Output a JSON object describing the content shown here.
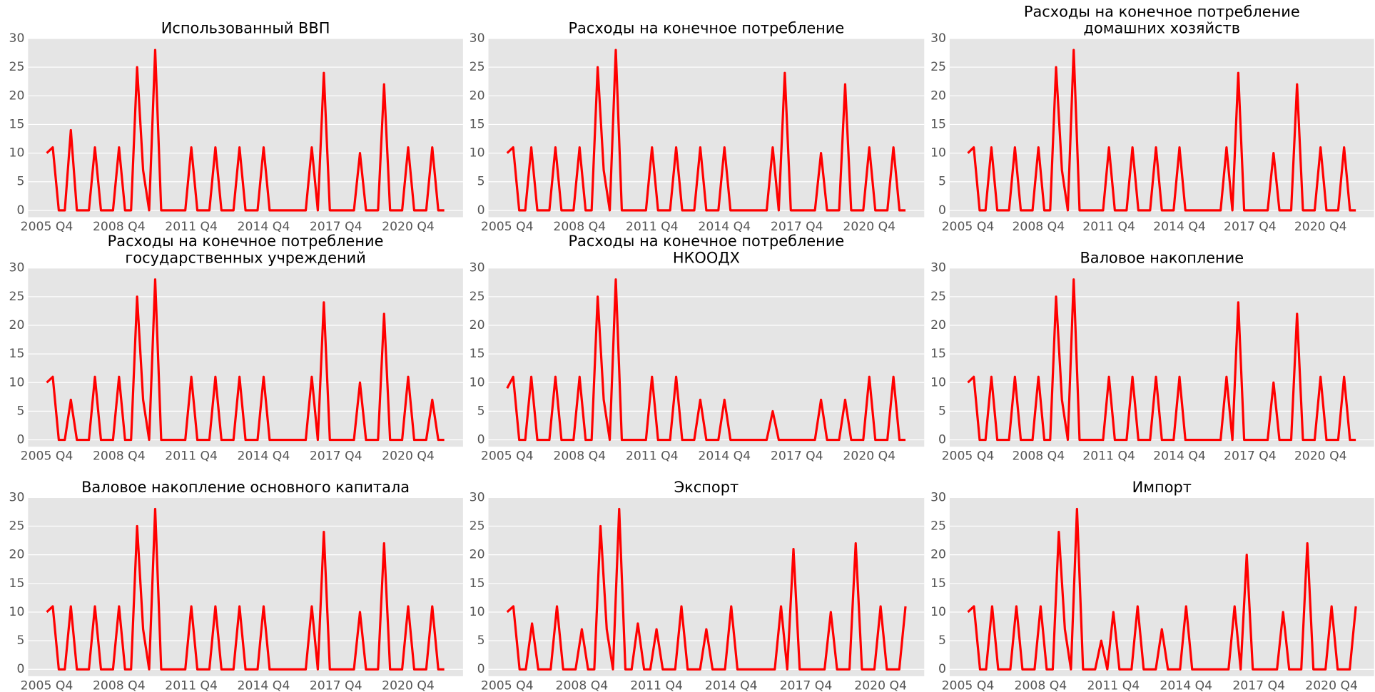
{
  "chart_data": [
    {
      "type": "line",
      "title": "Использованный ВВП",
      "color": "#ff0000",
      "ylim": [
        -1.2,
        30
      ],
      "yticks": [
        0,
        5,
        10,
        15,
        20,
        25,
        30
      ],
      "grid": true,
      "categories": [
        "2005 Q4",
        null,
        null,
        null,
        null,
        null,
        null,
        null,
        null,
        null,
        null,
        null,
        "2008 Q4",
        null,
        null,
        null,
        null,
        null,
        null,
        null,
        null,
        null,
        null,
        null,
        "2011 Q4",
        null,
        null,
        null,
        null,
        null,
        null,
        null,
        null,
        null,
        null,
        null,
        "2014 Q4",
        null,
        null,
        null,
        null,
        null,
        null,
        null,
        null,
        null,
        null,
        null,
        "2017 Q4",
        null,
        null,
        null,
        null,
        null,
        null,
        null,
        null,
        null,
        null,
        null,
        "2020 Q4",
        null,
        null,
        null,
        null,
        null,
        null
      ],
      "values": [
        10,
        11,
        0,
        0,
        14,
        0,
        0,
        0,
        11,
        0,
        0,
        0,
        11,
        0,
        0,
        25,
        7,
        0,
        28,
        0,
        0,
        0,
        0,
        0,
        11,
        0,
        0,
        0,
        11,
        0,
        0,
        0,
        11,
        0,
        0,
        0,
        11,
        0,
        0,
        0,
        0,
        0,
        0,
        0,
        11,
        0,
        24,
        0,
        0,
        0,
        0,
        0,
        10,
        0,
        0,
        0,
        22,
        0,
        0,
        0,
        11,
        0,
        0,
        0,
        11,
        0,
        0
      ]
    },
    {
      "type": "line",
      "title": "Расходы на конечное потребление",
      "color": "#ff0000",
      "ylim": [
        -1.2,
        30
      ],
      "yticks": [
        0,
        5,
        10,
        15,
        20,
        25,
        30
      ],
      "grid": true,
      "categories": [
        "2005 Q4",
        null,
        null,
        null,
        null,
        null,
        null,
        null,
        null,
        null,
        null,
        null,
        "2008 Q4",
        null,
        null,
        null,
        null,
        null,
        null,
        null,
        null,
        null,
        null,
        null,
        "2011 Q4",
        null,
        null,
        null,
        null,
        null,
        null,
        null,
        null,
        null,
        null,
        null,
        "2014 Q4",
        null,
        null,
        null,
        null,
        null,
        null,
        null,
        null,
        null,
        null,
        null,
        "2017 Q4",
        null,
        null,
        null,
        null,
        null,
        null,
        null,
        null,
        null,
        null,
        null,
        "2020 Q4",
        null,
        null,
        null,
        null,
        null,
        null
      ],
      "values": [
        10,
        11,
        0,
        0,
        11,
        0,
        0,
        0,
        11,
        0,
        0,
        0,
        11,
        0,
        0,
        25,
        7,
        0,
        28,
        0,
        0,
        0,
        0,
        0,
        11,
        0,
        0,
        0,
        11,
        0,
        0,
        0,
        11,
        0,
        0,
        0,
        11,
        0,
        0,
        0,
        0,
        0,
        0,
        0,
        11,
        0,
        24,
        0,
        0,
        0,
        0,
        0,
        10,
        0,
        0,
        0,
        22,
        0,
        0,
        0,
        11,
        0,
        0,
        0,
        11,
        0,
        0
      ]
    },
    {
      "type": "line",
      "title": "Расходы на конечное потребление\nдомашних хозяйств",
      "color": "#ff0000",
      "ylim": [
        -1.2,
        30
      ],
      "yticks": [
        0,
        5,
        10,
        15,
        20,
        25,
        30
      ],
      "grid": true,
      "categories": [
        "2005 Q4",
        null,
        null,
        null,
        null,
        null,
        null,
        null,
        null,
        null,
        null,
        null,
        "2008 Q4",
        null,
        null,
        null,
        null,
        null,
        null,
        null,
        null,
        null,
        null,
        null,
        "2011 Q4",
        null,
        null,
        null,
        null,
        null,
        null,
        null,
        null,
        null,
        null,
        null,
        "2014 Q4",
        null,
        null,
        null,
        null,
        null,
        null,
        null,
        null,
        null,
        null,
        null,
        "2017 Q4",
        null,
        null,
        null,
        null,
        null,
        null,
        null,
        null,
        null,
        null,
        null,
        "2020 Q4",
        null,
        null,
        null,
        null,
        null,
        null
      ],
      "values": [
        10,
        11,
        0,
        0,
        11,
        0,
        0,
        0,
        11,
        0,
        0,
        0,
        11,
        0,
        0,
        25,
        7,
        0,
        28,
        0,
        0,
        0,
        0,
        0,
        11,
        0,
        0,
        0,
        11,
        0,
        0,
        0,
        11,
        0,
        0,
        0,
        11,
        0,
        0,
        0,
        0,
        0,
        0,
        0,
        11,
        0,
        24,
        0,
        0,
        0,
        0,
        0,
        10,
        0,
        0,
        0,
        22,
        0,
        0,
        0,
        11,
        0,
        0,
        0,
        11,
        0,
        0
      ]
    },
    {
      "type": "line",
      "title": "Расходы на конечное потребление\nгосударственных учреждений",
      "color": "#ff0000",
      "ylim": [
        -1.2,
        30
      ],
      "yticks": [
        0,
        5,
        10,
        15,
        20,
        25,
        30
      ],
      "grid": true,
      "categories": [
        "2005 Q4",
        null,
        null,
        null,
        null,
        null,
        null,
        null,
        null,
        null,
        null,
        null,
        "2008 Q4",
        null,
        null,
        null,
        null,
        null,
        null,
        null,
        null,
        null,
        null,
        null,
        "2011 Q4",
        null,
        null,
        null,
        null,
        null,
        null,
        null,
        null,
        null,
        null,
        null,
        "2014 Q4",
        null,
        null,
        null,
        null,
        null,
        null,
        null,
        null,
        null,
        null,
        null,
        "2017 Q4",
        null,
        null,
        null,
        null,
        null,
        null,
        null,
        null,
        null,
        null,
        null,
        "2020 Q4",
        null,
        null,
        null,
        null,
        null,
        null
      ],
      "values": [
        10,
        11,
        0,
        0,
        7,
        0,
        0,
        0,
        11,
        0,
        0,
        0,
        11,
        0,
        0,
        25,
        7,
        0,
        28,
        0,
        0,
        0,
        0,
        0,
        11,
        0,
        0,
        0,
        11,
        0,
        0,
        0,
        11,
        0,
        0,
        0,
        11,
        0,
        0,
        0,
        0,
        0,
        0,
        0,
        11,
        0,
        24,
        0,
        0,
        0,
        0,
        0,
        10,
        0,
        0,
        0,
        22,
        0,
        0,
        0,
        11,
        0,
        0,
        0,
        7,
        0,
        0
      ]
    },
    {
      "type": "line",
      "title": "Расходы на конечное потребление\nНКООДХ",
      "color": "#ff0000",
      "ylim": [
        -1.2,
        30
      ],
      "yticks": [
        0,
        5,
        10,
        15,
        20,
        25,
        30
      ],
      "grid": true,
      "categories": [
        "2005 Q4",
        null,
        null,
        null,
        null,
        null,
        null,
        null,
        null,
        null,
        null,
        null,
        "2008 Q4",
        null,
        null,
        null,
        null,
        null,
        null,
        null,
        null,
        null,
        null,
        null,
        "2011 Q4",
        null,
        null,
        null,
        null,
        null,
        null,
        null,
        null,
        null,
        null,
        null,
        "2014 Q4",
        null,
        null,
        null,
        null,
        null,
        null,
        null,
        null,
        null,
        null,
        null,
        "2017 Q4",
        null,
        null,
        null,
        null,
        null,
        null,
        null,
        null,
        null,
        null,
        null,
        "2020 Q4",
        null,
        null,
        null,
        null,
        null,
        null
      ],
      "values": [
        9,
        11,
        0,
        0,
        11,
        0,
        0,
        0,
        11,
        0,
        0,
        0,
        11,
        0,
        0,
        25,
        7,
        0,
        28,
        0,
        0,
        0,
        0,
        0,
        11,
        0,
        0,
        0,
        11,
        0,
        0,
        0,
        7,
        0,
        0,
        0,
        7,
        0,
        0,
        0,
        0,
        0,
        0,
        0,
        5,
        0,
        0,
        0,
        0,
        0,
        0,
        0,
        7,
        0,
        0,
        0,
        7,
        0,
        0,
        0,
        11,
        0,
        0,
        0,
        11,
        0,
        0
      ]
    },
    {
      "type": "line",
      "title": "Валовое накопление",
      "color": "#ff0000",
      "ylim": [
        -1.2,
        30
      ],
      "yticks": [
        0,
        5,
        10,
        15,
        20,
        25,
        30
      ],
      "grid": true,
      "categories": [
        "2005 Q4",
        null,
        null,
        null,
        null,
        null,
        null,
        null,
        null,
        null,
        null,
        null,
        "2008 Q4",
        null,
        null,
        null,
        null,
        null,
        null,
        null,
        null,
        null,
        null,
        null,
        "2011 Q4",
        null,
        null,
        null,
        null,
        null,
        null,
        null,
        null,
        null,
        null,
        null,
        "2014 Q4",
        null,
        null,
        null,
        null,
        null,
        null,
        null,
        null,
        null,
        null,
        null,
        "2017 Q4",
        null,
        null,
        null,
        null,
        null,
        null,
        null,
        null,
        null,
        null,
        null,
        "2020 Q4",
        null,
        null,
        null,
        null,
        null,
        null
      ],
      "values": [
        10,
        11,
        0,
        0,
        11,
        0,
        0,
        0,
        11,
        0,
        0,
        0,
        11,
        0,
        0,
        25,
        7,
        0,
        28,
        0,
        0,
        0,
        0,
        0,
        11,
        0,
        0,
        0,
        11,
        0,
        0,
        0,
        11,
        0,
        0,
        0,
        11,
        0,
        0,
        0,
        0,
        0,
        0,
        0,
        11,
        0,
        24,
        0,
        0,
        0,
        0,
        0,
        10,
        0,
        0,
        0,
        22,
        0,
        0,
        0,
        11,
        0,
        0,
        0,
        11,
        0,
        0
      ]
    },
    {
      "type": "line",
      "title": "Валовое накопление основного капитала",
      "color": "#ff0000",
      "ylim": [
        -1.2,
        30
      ],
      "yticks": [
        0,
        5,
        10,
        15,
        20,
        25,
        30
      ],
      "grid": true,
      "categories": [
        "2005 Q4",
        null,
        null,
        null,
        null,
        null,
        null,
        null,
        null,
        null,
        null,
        null,
        "2008 Q4",
        null,
        null,
        null,
        null,
        null,
        null,
        null,
        null,
        null,
        null,
        null,
        "2011 Q4",
        null,
        null,
        null,
        null,
        null,
        null,
        null,
        null,
        null,
        null,
        null,
        "2014 Q4",
        null,
        null,
        null,
        null,
        null,
        null,
        null,
        null,
        null,
        null,
        null,
        "2017 Q4",
        null,
        null,
        null,
        null,
        null,
        null,
        null,
        null,
        null,
        null,
        null,
        "2020 Q4",
        null,
        null,
        null,
        null,
        null,
        null
      ],
      "values": [
        10,
        11,
        0,
        0,
        11,
        0,
        0,
        0,
        11,
        0,
        0,
        0,
        11,
        0,
        0,
        25,
        7,
        0,
        28,
        0,
        0,
        0,
        0,
        0,
        11,
        0,
        0,
        0,
        11,
        0,
        0,
        0,
        11,
        0,
        0,
        0,
        11,
        0,
        0,
        0,
        0,
        0,
        0,
        0,
        11,
        0,
        24,
        0,
        0,
        0,
        0,
        0,
        10,
        0,
        0,
        0,
        22,
        0,
        0,
        0,
        11,
        0,
        0,
        0,
        11,
        0,
        0
      ]
    },
    {
      "type": "line",
      "title": "Экспорт",
      "color": "#ff0000",
      "ylim": [
        -1.2,
        30
      ],
      "yticks": [
        0,
        5,
        10,
        15,
        20,
        25,
        30
      ],
      "grid": true,
      "categories": [
        "2005 Q4",
        null,
        null,
        null,
        null,
        null,
        null,
        null,
        null,
        null,
        null,
        null,
        "2008 Q4",
        null,
        null,
        null,
        null,
        null,
        null,
        null,
        null,
        null,
        null,
        null,
        "2011 Q4",
        null,
        null,
        null,
        null,
        null,
        null,
        null,
        null,
        null,
        null,
        null,
        "2014 Q4",
        null,
        null,
        null,
        null,
        null,
        null,
        null,
        null,
        null,
        null,
        null,
        "2017 Q4",
        null,
        null,
        null,
        null,
        null,
        null,
        null,
        null,
        null,
        null,
        null,
        "2020 Q4",
        null,
        null,
        null,
        null
      ],
      "values": [
        10,
        11,
        0,
        0,
        8,
        0,
        0,
        0,
        11,
        0,
        0,
        0,
        7,
        0,
        0,
        25,
        7,
        0,
        28,
        0,
        0,
        8,
        0,
        0,
        7,
        0,
        0,
        0,
        11,
        0,
        0,
        0,
        7,
        0,
        0,
        0,
        11,
        0,
        0,
        0,
        0,
        0,
        0,
        0,
        11,
        0,
        21,
        0,
        0,
        0,
        0,
        0,
        10,
        0,
        0,
        0,
        22,
        0,
        0,
        0,
        11,
        0,
        0,
        0,
        11
      ]
    },
    {
      "type": "line",
      "title": "Импорт",
      "color": "#ff0000",
      "ylim": [
        -1.2,
        30
      ],
      "yticks": [
        0,
        5,
        10,
        15,
        20,
        25,
        30
      ],
      "grid": true,
      "categories": [
        "2005 Q4",
        null,
        null,
        null,
        null,
        null,
        null,
        null,
        null,
        null,
        null,
        null,
        "2008 Q4",
        null,
        null,
        null,
        null,
        null,
        null,
        null,
        null,
        null,
        null,
        null,
        "2011 Q4",
        null,
        null,
        null,
        null,
        null,
        null,
        null,
        null,
        null,
        null,
        null,
        "2014 Q4",
        null,
        null,
        null,
        null,
        null,
        null,
        null,
        null,
        null,
        null,
        null,
        "2017 Q4",
        null,
        null,
        null,
        null,
        null,
        null,
        null,
        null,
        null,
        null,
        null,
        "2020 Q4",
        null,
        null,
        null,
        null
      ],
      "values": [
        10,
        11,
        0,
        0,
        11,
        0,
        0,
        0,
        11,
        0,
        0,
        0,
        11,
        0,
        0,
        24,
        7,
        0,
        28,
        0,
        0,
        0,
        5,
        0,
        10,
        0,
        0,
        0,
        11,
        0,
        0,
        0,
        7,
        0,
        0,
        0,
        11,
        0,
        0,
        0,
        0,
        0,
        0,
        0,
        11,
        0,
        20,
        0,
        0,
        0,
        0,
        0,
        10,
        0,
        0,
        0,
        22,
        0,
        0,
        0,
        11,
        0,
        0,
        0,
        11
      ]
    }
  ]
}
